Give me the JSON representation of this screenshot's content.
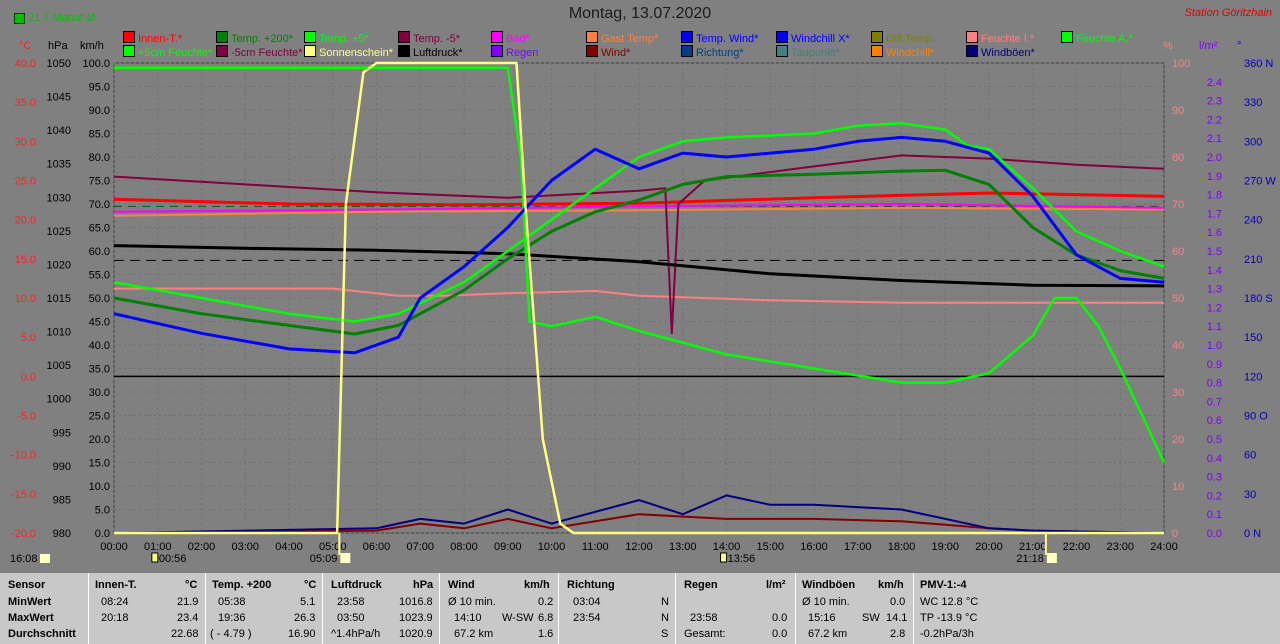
{
  "header": {
    "title": "Montag, 13.07.2020",
    "station": "Station Göritzhain",
    "avg_label": "21.7 Monat-Ø"
  },
  "axis_units": {
    "temp": "°C",
    "pressure": "hPa",
    "wind": "km/h",
    "humidity": "%",
    "rain": "l/m²",
    "direction": "°"
  },
  "legend": [
    {
      "label": "Innen-T.*",
      "color": "#ff0000"
    },
    {
      "label": "Temp. +200*",
      "color": "#008000"
    },
    {
      "label": "Temp. +5*",
      "color": "#00ff00"
    },
    {
      "label": "Temp. -5*",
      "color": "#800040"
    },
    {
      "label": "Bad*",
      "color": "#ff00ff"
    },
    {
      "label": "Gast Temp*",
      "color": "#ff8040"
    },
    {
      "label": "Temp. Wind*",
      "color": "#0000ff"
    },
    {
      "label": "Windchill X*",
      "color": "#0000ff"
    },
    {
      "label": "Diff Temp.",
      "color": "#808000"
    },
    {
      "label": "Feuchte I.*",
      "color": "#ff8080"
    },
    {
      "label": "Feuchte A.*",
      "color": "#00ff00"
    },
    {
      "label": "+5cm Feuchte*",
      "color": "#00ff00"
    },
    {
      "label": "-5cm Feuchte*",
      "color": "#800040"
    },
    {
      "label": "Sonnenschein*",
      "color": "#ffff80"
    },
    {
      "label": "Luftdruck*",
      "color": "#000000"
    },
    {
      "label": "Regen",
      "color": "#8000ff"
    },
    {
      "label": "Wind*",
      "color": "#800000"
    },
    {
      "label": "Richtung*",
      "color": "#004080"
    },
    {
      "label": "Taupunkt*",
      "color": "#408080"
    },
    {
      "label": "Windchill*",
      "color": "#ff8000"
    },
    {
      "label": "Windböen*",
      "color": "#000080"
    }
  ],
  "chart_data": {
    "type": "line",
    "title": "Montag, 13.07.2020",
    "x_ticks": [
      "00:00",
      "01:00",
      "02:00",
      "03:00",
      "04:00",
      "05:00",
      "06:00",
      "07:00",
      "08:00",
      "09:00",
      "10:00",
      "11:00",
      "12:00",
      "13:00",
      "14:00",
      "15:00",
      "16:00",
      "17:00",
      "18:00",
      "19:00",
      "20:00",
      "21:00",
      "22:00",
      "23:00",
      "24:00"
    ],
    "sun_events": {
      "sunrise": "05:09",
      "sunset": "21:18",
      "moonrise": "00:56",
      "moonset": "13:56",
      "time_left": "16:08"
    },
    "y_axes": {
      "temp_c": {
        "range": [
          -20,
          40
        ],
        "ticks": [
          "40.0",
          "35.0",
          "30.0",
          "25.0",
          "20.0",
          "15.0",
          "10.0",
          "5.0",
          "0.0",
          "-5.0",
          "-10.0",
          "-15.0",
          "-20.0"
        ]
      },
      "pressure_hpa": {
        "range": [
          980,
          1050
        ],
        "ticks": [
          "1050",
          "1045",
          "1040",
          "1035",
          "1030",
          "1025",
          "1020",
          "1015",
          "1010",
          "1005",
          "1000",
          "995",
          "990",
          "985",
          "980"
        ]
      },
      "wind_kmh": {
        "range": [
          0,
          100
        ],
        "ticks": [
          "100.0",
          "95.0",
          "90.0",
          "85.0",
          "80.0",
          "75.0",
          "70.0",
          "65.0",
          "60.0",
          "55.0",
          "50.0",
          "45.0",
          "40.0",
          "35.0",
          "30.0",
          "25.0",
          "20.0",
          "15.0",
          "10.0",
          "5.0",
          "0.0"
        ]
      },
      "humidity_pct": {
        "range": [
          0,
          100
        ],
        "ticks": [
          "100",
          "90",
          "80",
          "70",
          "60",
          "50",
          "40",
          "30",
          "20",
          "10",
          "0"
        ]
      },
      "rain_lm2": {
        "range": [
          0,
          2.5
        ],
        "ticks": [
          "2.4",
          "2.3",
          "2.2",
          "2.1",
          "2.0",
          "1.9",
          "1.8",
          "1.7",
          "1.6",
          "1.5",
          "1.4",
          "1.3",
          "1.2",
          "1.1",
          "1.0",
          "0.9",
          "0.8",
          "0.7",
          "0.6",
          "0.5",
          "0.4",
          "0.3",
          "0.2",
          "0.1",
          "0.0"
        ]
      },
      "direction_deg": {
        "range": [
          0,
          360
        ],
        "ticks": [
          "360 N",
          "330",
          "300",
          "270 W",
          "240",
          "210",
          "180 S",
          "150",
          "120",
          "90 O",
          "60",
          "30",
          "0 N"
        ]
      }
    },
    "series": [
      {
        "name": "Innen-T.*",
        "x": [
          0,
          4,
          8,
          12,
          16,
          20,
          24
        ],
        "y": [
          22.6,
          22.0,
          21.9,
          22.1,
          22.8,
          23.4,
          23.0
        ]
      },
      {
        "name": "Temp. +200*",
        "x": [
          0,
          2,
          4,
          5.5,
          6.5,
          8,
          9,
          10,
          11,
          12,
          13,
          14,
          16,
          18,
          19,
          20,
          21,
          22,
          23,
          24
        ],
        "y": [
          10,
          8,
          6.5,
          5.4,
          6.5,
          11,
          15,
          18.5,
          21,
          22.5,
          24.5,
          25.5,
          25.8,
          26.2,
          26.3,
          24.5,
          19,
          15.5,
          13.5,
          12.5
        ]
      },
      {
        "name": "Temp. +5*",
        "x": [
          0,
          2,
          4,
          5.5,
          6.5,
          8,
          9,
          10,
          11,
          12,
          13,
          14,
          16,
          17,
          18,
          19,
          19.5,
          20,
          21,
          22,
          23,
          24
        ],
        "y": [
          12,
          10,
          8,
          7,
          8,
          12,
          16,
          20,
          24,
          28,
          30,
          30.5,
          31,
          32,
          32.3,
          31.5,
          29.5,
          29,
          24,
          18.5,
          16,
          14
        ]
      },
      {
        "name": "Temp. -5*",
        "x": [
          0,
          3,
          6,
          9,
          12,
          12.6,
          12.75,
          12.9,
          13.5,
          16,
          18,
          19,
          20,
          22,
          24
        ],
        "y": [
          25.5,
          24.5,
          23.5,
          22.8,
          23.7,
          24,
          5.5,
          22,
          25,
          26.8,
          28.2,
          28,
          27.8,
          27,
          26.5
        ]
      },
      {
        "name": "Bad*",
        "x": [
          0,
          6,
          12,
          18,
          24
        ],
        "y": [
          21,
          21.3,
          21.7,
          22,
          21.5
        ]
      },
      {
        "name": "Gast Temp*",
        "x": [
          0,
          6,
          12,
          18,
          24
        ],
        "y": [
          20.5,
          21,
          21.2,
          21.5,
          21.3
        ]
      },
      {
        "name": "Temp. Wind*",
        "x": [
          0,
          2,
          4,
          5.5,
          6.5,
          7,
          8,
          9,
          10,
          11,
          12,
          13,
          14,
          15,
          16,
          17,
          18,
          19,
          20,
          21,
          22,
          23,
          24
        ],
        "y": [
          8,
          5.5,
          3.5,
          3,
          5,
          10,
          14,
          19,
          25,
          29,
          26.5,
          28.5,
          28,
          28.5,
          29,
          30,
          30.5,
          30,
          28.5,
          23,
          15.5,
          12.5,
          12
        ]
      },
      {
        "name": "Luftdruck*",
        "x": [
          0,
          3,
          6,
          9,
          12,
          15,
          18,
          21,
          24
        ],
        "y": [
          1022.8,
          1022.4,
          1022.1,
          1021.6,
          1020.4,
          1018.6,
          1017.6,
          1016.9,
          1016.8
        ]
      },
      {
        "name": "Feuchte I.*",
        "x": [
          0,
          5,
          6.5,
          7.5,
          9,
          11,
          12,
          15,
          18,
          21,
          24
        ],
        "y": [
          52,
          52,
          50.5,
          50.5,
          51,
          51.5,
          50.5,
          49.5,
          49,
          49,
          49
        ]
      },
      {
        "name": "Feuchte A.*",
        "x": [
          0,
          6,
          9,
          9.3,
          9.5,
          10,
          11,
          12,
          14,
          16,
          18,
          19,
          20,
          21,
          21.5,
          22,
          22.5,
          23,
          24
        ],
        "y": [
          99,
          99,
          99,
          80,
          45,
          44,
          46,
          43,
          38,
          35,
          32,
          32,
          34,
          42,
          50,
          50,
          44,
          35,
          15
        ]
      },
      {
        "name": "Sonnenschein*",
        "x": [
          0,
          5.1,
          5.3,
          5.7,
          6,
          9.2,
          9.4,
          9.8,
          10.2,
          10.5,
          24
        ],
        "y": [
          0,
          0,
          70,
          98,
          100,
          100,
          70,
          20,
          2,
          0,
          0
        ]
      },
      {
        "name": "Wind*",
        "x": [
          0,
          6,
          7,
          8,
          9,
          10,
          12,
          14,
          16,
          18,
          20,
          21,
          24
        ],
        "y": [
          0,
          0.5,
          2,
          1,
          3,
          1,
          4,
          3,
          3,
          2.5,
          1,
          0.5,
          0
        ]
      },
      {
        "name": "Windböen*",
        "x": [
          0,
          6,
          7,
          8,
          9,
          10,
          12,
          13,
          14,
          15,
          16,
          18,
          19,
          20,
          21,
          24
        ],
        "y": [
          0,
          1,
          3,
          2,
          5,
          2,
          7,
          4,
          8,
          6,
          6,
          5,
          3,
          1,
          0.5,
          0
        ]
      }
    ]
  },
  "summary": {
    "headers": {
      "sensor": "Sensor",
      "innen": "Innen-T.",
      "temp": "Temp. +200",
      "druck": "Luftdruck",
      "wind": "Wind",
      "richtung": "Richtung",
      "regen": "Regen",
      "boeen": "Windböen",
      "pmv": "PMV-1:-4"
    },
    "units": {
      "innen": "°C",
      "temp": "°C",
      "druck": "hPa",
      "wind": "km/h",
      "regen": "l/m²",
      "boeen": "km/h"
    },
    "rows": {
      "min": "MinWert",
      "max": "MaxWert",
      "avg": "Durchschnitt"
    },
    "innen": {
      "min_time": "08:24",
      "min_val": "21.9",
      "max_time": "20:18",
      "max_val": "23.4",
      "avg": "22.68"
    },
    "temp": {
      "min_time": "05:38",
      "min_val": "5.1",
      "max_time": "19:36",
      "max_val": "26.3",
      "avg_diff": "( - 4.79 )",
      "avg": "16.90"
    },
    "druck": {
      "min_time": "23:58",
      "min_val": "1016.8",
      "max_time": "03:50",
      "max_val": "1023.9",
      "avg_trend": "^1.4hPa/h",
      "avg": "1020.9"
    },
    "wind": {
      "min_label": "Ø 10 min.",
      "min_val": "0.2",
      "max_time": "14:10",
      "max_dir": "W-SW",
      "max_val": "6.8",
      "avg_label": "67.2 km",
      "avg": "1.6"
    },
    "richtung": {
      "min_time": "03:04",
      "min_dir": "N",
      "max_time": "23:54",
      "max_dir": "N",
      "avg_dir": "S"
    },
    "regen": {
      "max_time": "23:58",
      "max_val": "0.0",
      "avg_label": "Gesamt:",
      "avg": "0.0"
    },
    "boeen": {
      "min_label": "Ø 10 min.",
      "min_val": "0.0",
      "max_time": "15:16",
      "max_dir": "SW",
      "max_val": "14.1",
      "avg_label": "67.2 km",
      "avg": "2.8"
    },
    "pmv": {
      "wc": "WC 12.8 °C",
      "tp": "TP -13.9 °C",
      "trend": "-0.2hPa/3h"
    }
  }
}
